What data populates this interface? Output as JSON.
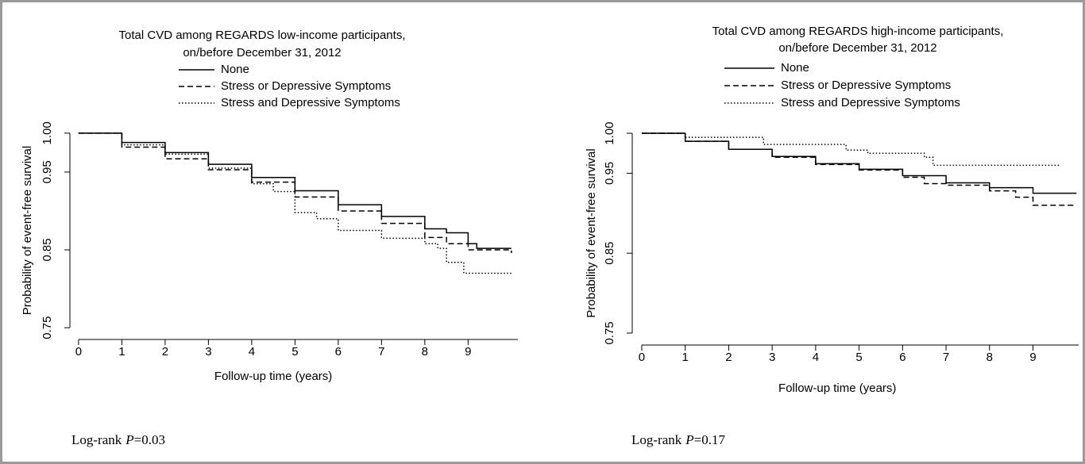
{
  "chart_data": [
    {
      "type": "line",
      "step": true,
      "title": [
        "Total CVD among REGARDS low-income participants,",
        "on/before  December 31, 2012"
      ],
      "x_label": "Follow-up time (years)",
      "y_label": "Probability of event-free survival",
      "xlim": [
        -0.2,
        10.15
      ],
      "ylim": [
        0.741,
        1.008
      ],
      "xticks": [
        0,
        1,
        2,
        3,
        4,
        5,
        6,
        7,
        8,
        9
      ],
      "yticks": [
        {
          "value": 1,
          "label": "1.00"
        },
        0.95,
        0.85,
        0.75
      ],
      "annotation": {
        "text": "Log-rank",
        "symbol": "P",
        "value": "=0.03"
      },
      "series": [
        {
          "name": "None",
          "color": "#000",
          "dash": "none",
          "x": [
            0,
            1,
            2,
            3,
            4,
            5,
            6,
            7,
            8,
            8.5,
            9,
            9.2,
            10
          ],
          "values": [
            1,
            0.988,
            0.975,
            0.96,
            0.943,
            0.926,
            0.908,
            0.893,
            0.877,
            0.872,
            0.858,
            0.852,
            0.852
          ]
        },
        {
          "name": "Stress or Depressive Symptoms",
          "color": "#000",
          "dash": "7 4",
          "x": [
            0,
            1,
            2,
            3,
            4,
            5,
            6,
            7,
            8,
            8.5,
            9,
            10
          ],
          "values": [
            1,
            0.982,
            0.967,
            0.953,
            0.937,
            0.918,
            0.9,
            0.884,
            0.866,
            0.858,
            0.85,
            0.846
          ]
        },
        {
          "name": "Stress and Depressive Symptoms",
          "color": "#000",
          "dash": "1.5 2.5",
          "x": [
            0,
            1,
            2,
            3,
            4,
            4.5,
            5,
            5.5,
            6,
            7,
            8,
            8.3,
            8.5,
            8.9,
            10
          ],
          "values": [
            1,
            0.985,
            0.973,
            0.955,
            0.935,
            0.925,
            0.898,
            0.89,
            0.875,
            0.865,
            0.858,
            0.852,
            0.834,
            0.82,
            0.82
          ]
        }
      ]
    },
    {
      "type": "line",
      "step": true,
      "title": [
        "Total CVD among REGARDS high-income participants,",
        "on/before  December 31, 2012"
      ],
      "x_label": "Follow-up time (years)",
      "y_label": "Probability of event-free survival",
      "xlim": [
        -0.2,
        10.05
      ],
      "ylim": [
        0.742,
        1.008
      ],
      "xticks": [
        0,
        1,
        2,
        3,
        4,
        5,
        6,
        7,
        8,
        9
      ],
      "yticks": [
        {
          "value": 1,
          "label": "1.00"
        },
        0.95,
        0.85,
        0.75
      ],
      "annotation": {
        "text": "Log-rank",
        "symbol": "P",
        "value": "=0.17"
      },
      "series": [
        {
          "name": "None",
          "color": "#000",
          "dash": "none",
          "x": [
            0,
            1,
            2,
            3,
            4,
            5,
            6,
            7,
            8,
            9,
            10
          ],
          "values": [
            1,
            0.99,
            0.98,
            0.971,
            0.962,
            0.955,
            0.947,
            0.938,
            0.932,
            0.925,
            0.925
          ]
        },
        {
          "name": "Stress or Depressive Symptoms",
          "color": "#000",
          "dash": "7 4",
          "x": [
            0,
            1,
            2,
            3,
            4,
            5,
            6,
            6.5,
            7,
            8,
            8.6,
            9,
            10
          ],
          "values": [
            1,
            0.99,
            0.98,
            0.97,
            0.961,
            0.954,
            0.945,
            0.937,
            0.935,
            0.928,
            0.92,
            0.91,
            0.91
          ]
        },
        {
          "name": "Stress and Depressive Symptoms",
          "color": "#000",
          "dash": "1.5 2.5",
          "x": [
            0,
            1,
            2.8,
            4.7,
            5.2,
            6.5,
            6.7,
            9.6
          ],
          "values": [
            1,
            0.995,
            0.986,
            0.979,
            0.975,
            0.97,
            0.96,
            0.96
          ]
        }
      ]
    }
  ]
}
